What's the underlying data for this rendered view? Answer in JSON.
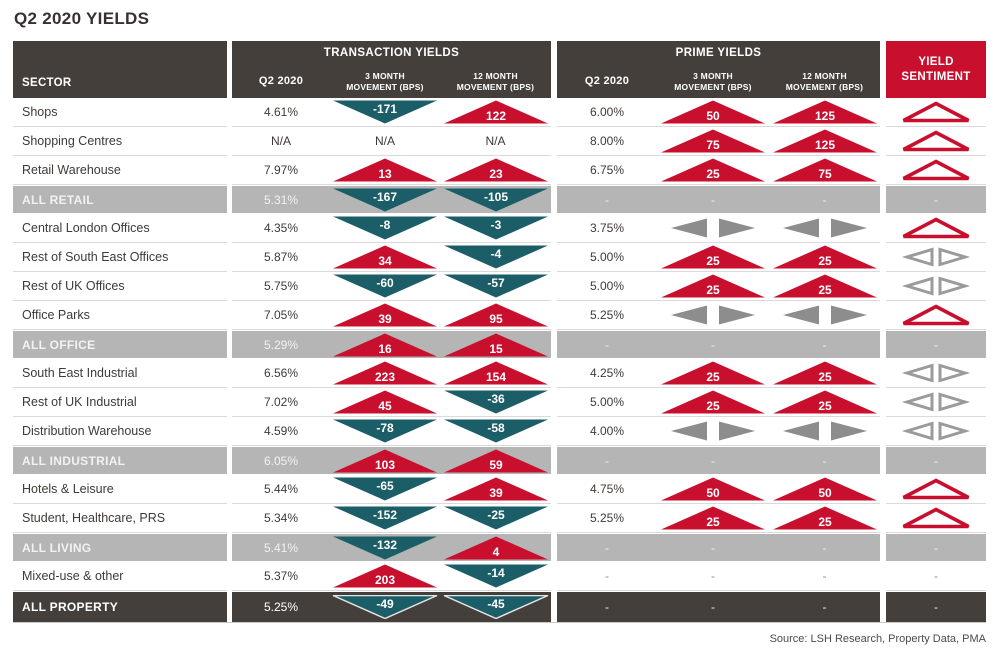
{
  "title": "Q2 2020 YIELDS",
  "source": "Source: LSH Research, Property Data, PMA",
  "header": {
    "sector": "SECTOR",
    "transaction_group": "TRANSACTION YIELDS",
    "prime_group": "PRIME YIELDS",
    "q2": "Q2 2020",
    "m3": "3 MONTH MOVEMENT (BPS)",
    "m12": "12 MONTH MOVEMENT (BPS)",
    "sentiment": "YIELD SENTIMENT"
  },
  "colors": {
    "red": "#c8102e",
    "teal": "#1b5e68",
    "dark_header": "#453f3b",
    "subtotal_bg": "#b5b5b5",
    "steady_gray": "#8d8d8d",
    "sentiment_outline_gray": "#9b9b9b",
    "sentiment_header_bg": "#c8102e"
  },
  "icons": {
    "up-arrow-icon": "red filled triangle pointing up (yield rise, bps value inside)",
    "down-arrow-icon": "teal filled triangle pointing down (yield fall, bps value inside)",
    "steady-arrow-icon": "grey filled left+right triangle pair (no movement)",
    "sentiment-up-icon": "red outlined hollow triangle pointing up",
    "sentiment-steady-icon": "grey outlined hollow left+right triangle pair"
  },
  "chart_data": {
    "type": "table",
    "title": "Q2 2020 YIELDS",
    "column_groups": [
      "TRANSACTION YIELDS",
      "PRIME YIELDS"
    ],
    "columns": [
      "SECTOR",
      "Q2 2020",
      "3 MONTH MOVEMENT (BPS)",
      "12 MONTH MOVEMENT (BPS)",
      "Q2 2020",
      "3 MONTH MOVEMENT (BPS)",
      "12 MONTH MOVEMENT (BPS)",
      "YIELD SENTIMENT"
    ],
    "movement_encoding": "numbers are basis points; positive = red up arrow, negative = teal down arrow, 'steady' = grey left/right arrows, '-' = not applicable",
    "sentiment_encoding": "up = red hollow up triangle, steady = grey hollow left/right triangles, '-' = none",
    "rows": [
      {
        "sector": "Shops",
        "type": "normal",
        "transaction": {
          "q2": "4.61%",
          "m3": -171,
          "m12": 122
        },
        "prime": {
          "q2": "6.00%",
          "m3": 50,
          "m12": 125
        },
        "sentiment": "up"
      },
      {
        "sector": "Shopping Centres",
        "type": "normal",
        "transaction": {
          "q2": "N/A",
          "m3": "N/A",
          "m12": "N/A"
        },
        "prime": {
          "q2": "8.00%",
          "m3": 75,
          "m12": 125
        },
        "sentiment": "up"
      },
      {
        "sector": "Retail Warehouse",
        "type": "normal",
        "transaction": {
          "q2": "7.97%",
          "m3": 13,
          "m12": 23
        },
        "prime": {
          "q2": "6.75%",
          "m3": 25,
          "m12": 75
        },
        "sentiment": "up"
      },
      {
        "sector": "ALL RETAIL",
        "type": "subtotal",
        "transaction": {
          "q2": "5.31%",
          "m3": -167,
          "m12": -105
        },
        "prime": {
          "q2": "-",
          "m3": "-",
          "m12": "-"
        },
        "sentiment": "-"
      },
      {
        "sector": "Central London Offices",
        "type": "normal",
        "transaction": {
          "q2": "4.35%",
          "m3": -8,
          "m12": -3
        },
        "prime": {
          "q2": "3.75%",
          "m3": "steady",
          "m12": "steady"
        },
        "sentiment": "up"
      },
      {
        "sector": "Rest of South East Offices",
        "type": "normal",
        "transaction": {
          "q2": "5.87%",
          "m3": 34,
          "m12": -4
        },
        "prime": {
          "q2": "5.00%",
          "m3": 25,
          "m12": 25
        },
        "sentiment": "steady"
      },
      {
        "sector": "Rest of UK Offices",
        "type": "normal",
        "transaction": {
          "q2": "5.75%",
          "m3": -60,
          "m12": -57
        },
        "prime": {
          "q2": "5.00%",
          "m3": 25,
          "m12": 25
        },
        "sentiment": "steady"
      },
      {
        "sector": "Office Parks",
        "type": "normal",
        "transaction": {
          "q2": "7.05%",
          "m3": 39,
          "m12": 95
        },
        "prime": {
          "q2": "5.25%",
          "m3": "steady",
          "m12": "steady"
        },
        "sentiment": "up"
      },
      {
        "sector": "ALL OFFICE",
        "type": "subtotal",
        "transaction": {
          "q2": "5.29%",
          "m3": 16,
          "m12": 15
        },
        "prime": {
          "q2": "-",
          "m3": "-",
          "m12": "-"
        },
        "sentiment": "-"
      },
      {
        "sector": "South East Industrial",
        "type": "normal",
        "transaction": {
          "q2": "6.56%",
          "m3": 223,
          "m12": 154
        },
        "prime": {
          "q2": "4.25%",
          "m3": 25,
          "m12": 25
        },
        "sentiment": "steady"
      },
      {
        "sector": "Rest of UK Industrial",
        "type": "normal",
        "transaction": {
          "q2": "7.02%",
          "m3": 45,
          "m12": -36
        },
        "prime": {
          "q2": "5.00%",
          "m3": 25,
          "m12": 25
        },
        "sentiment": "steady"
      },
      {
        "sector": "Distribution Warehouse",
        "type": "normal",
        "transaction": {
          "q2": "4.59%",
          "m3": -78,
          "m12": -58
        },
        "prime": {
          "q2": "4.00%",
          "m3": "steady",
          "m12": "steady"
        },
        "sentiment": "steady"
      },
      {
        "sector": "ALL INDUSTRIAL",
        "type": "subtotal",
        "transaction": {
          "q2": "6.05%",
          "m3": 103,
          "m12": 59
        },
        "prime": {
          "q2": "-",
          "m3": "-",
          "m12": "-"
        },
        "sentiment": "-"
      },
      {
        "sector": "Hotels & Leisure",
        "type": "normal",
        "transaction": {
          "q2": "5.44%",
          "m3": -65,
          "m12": 39
        },
        "prime": {
          "q2": "4.75%",
          "m3": 50,
          "m12": 50
        },
        "sentiment": "up"
      },
      {
        "sector": "Student, Healthcare, PRS",
        "type": "normal",
        "transaction": {
          "q2": "5.34%",
          "m3": -152,
          "m12": -25
        },
        "prime": {
          "q2": "5.25%",
          "m3": 25,
          "m12": 25
        },
        "sentiment": "up"
      },
      {
        "sector": "ALL LIVING",
        "type": "subtotal",
        "transaction": {
          "q2": "5.41%",
          "m3": -132,
          "m12": 4
        },
        "prime": {
          "q2": "-",
          "m3": "-",
          "m12": "-"
        },
        "sentiment": "-"
      },
      {
        "sector": "Mixed-use & other",
        "type": "normal",
        "transaction": {
          "q2": "5.37%",
          "m3": 203,
          "m12": -14
        },
        "prime": {
          "q2": "-",
          "m3": "-",
          "m12": "-"
        },
        "sentiment": "-"
      },
      {
        "sector": "ALL PROPERTY",
        "type": "total",
        "transaction": {
          "q2": "5.25%",
          "m3": -49,
          "m12": -45
        },
        "prime": {
          "q2": "-",
          "m3": "-",
          "m12": "-"
        },
        "sentiment": "-"
      }
    ]
  }
}
